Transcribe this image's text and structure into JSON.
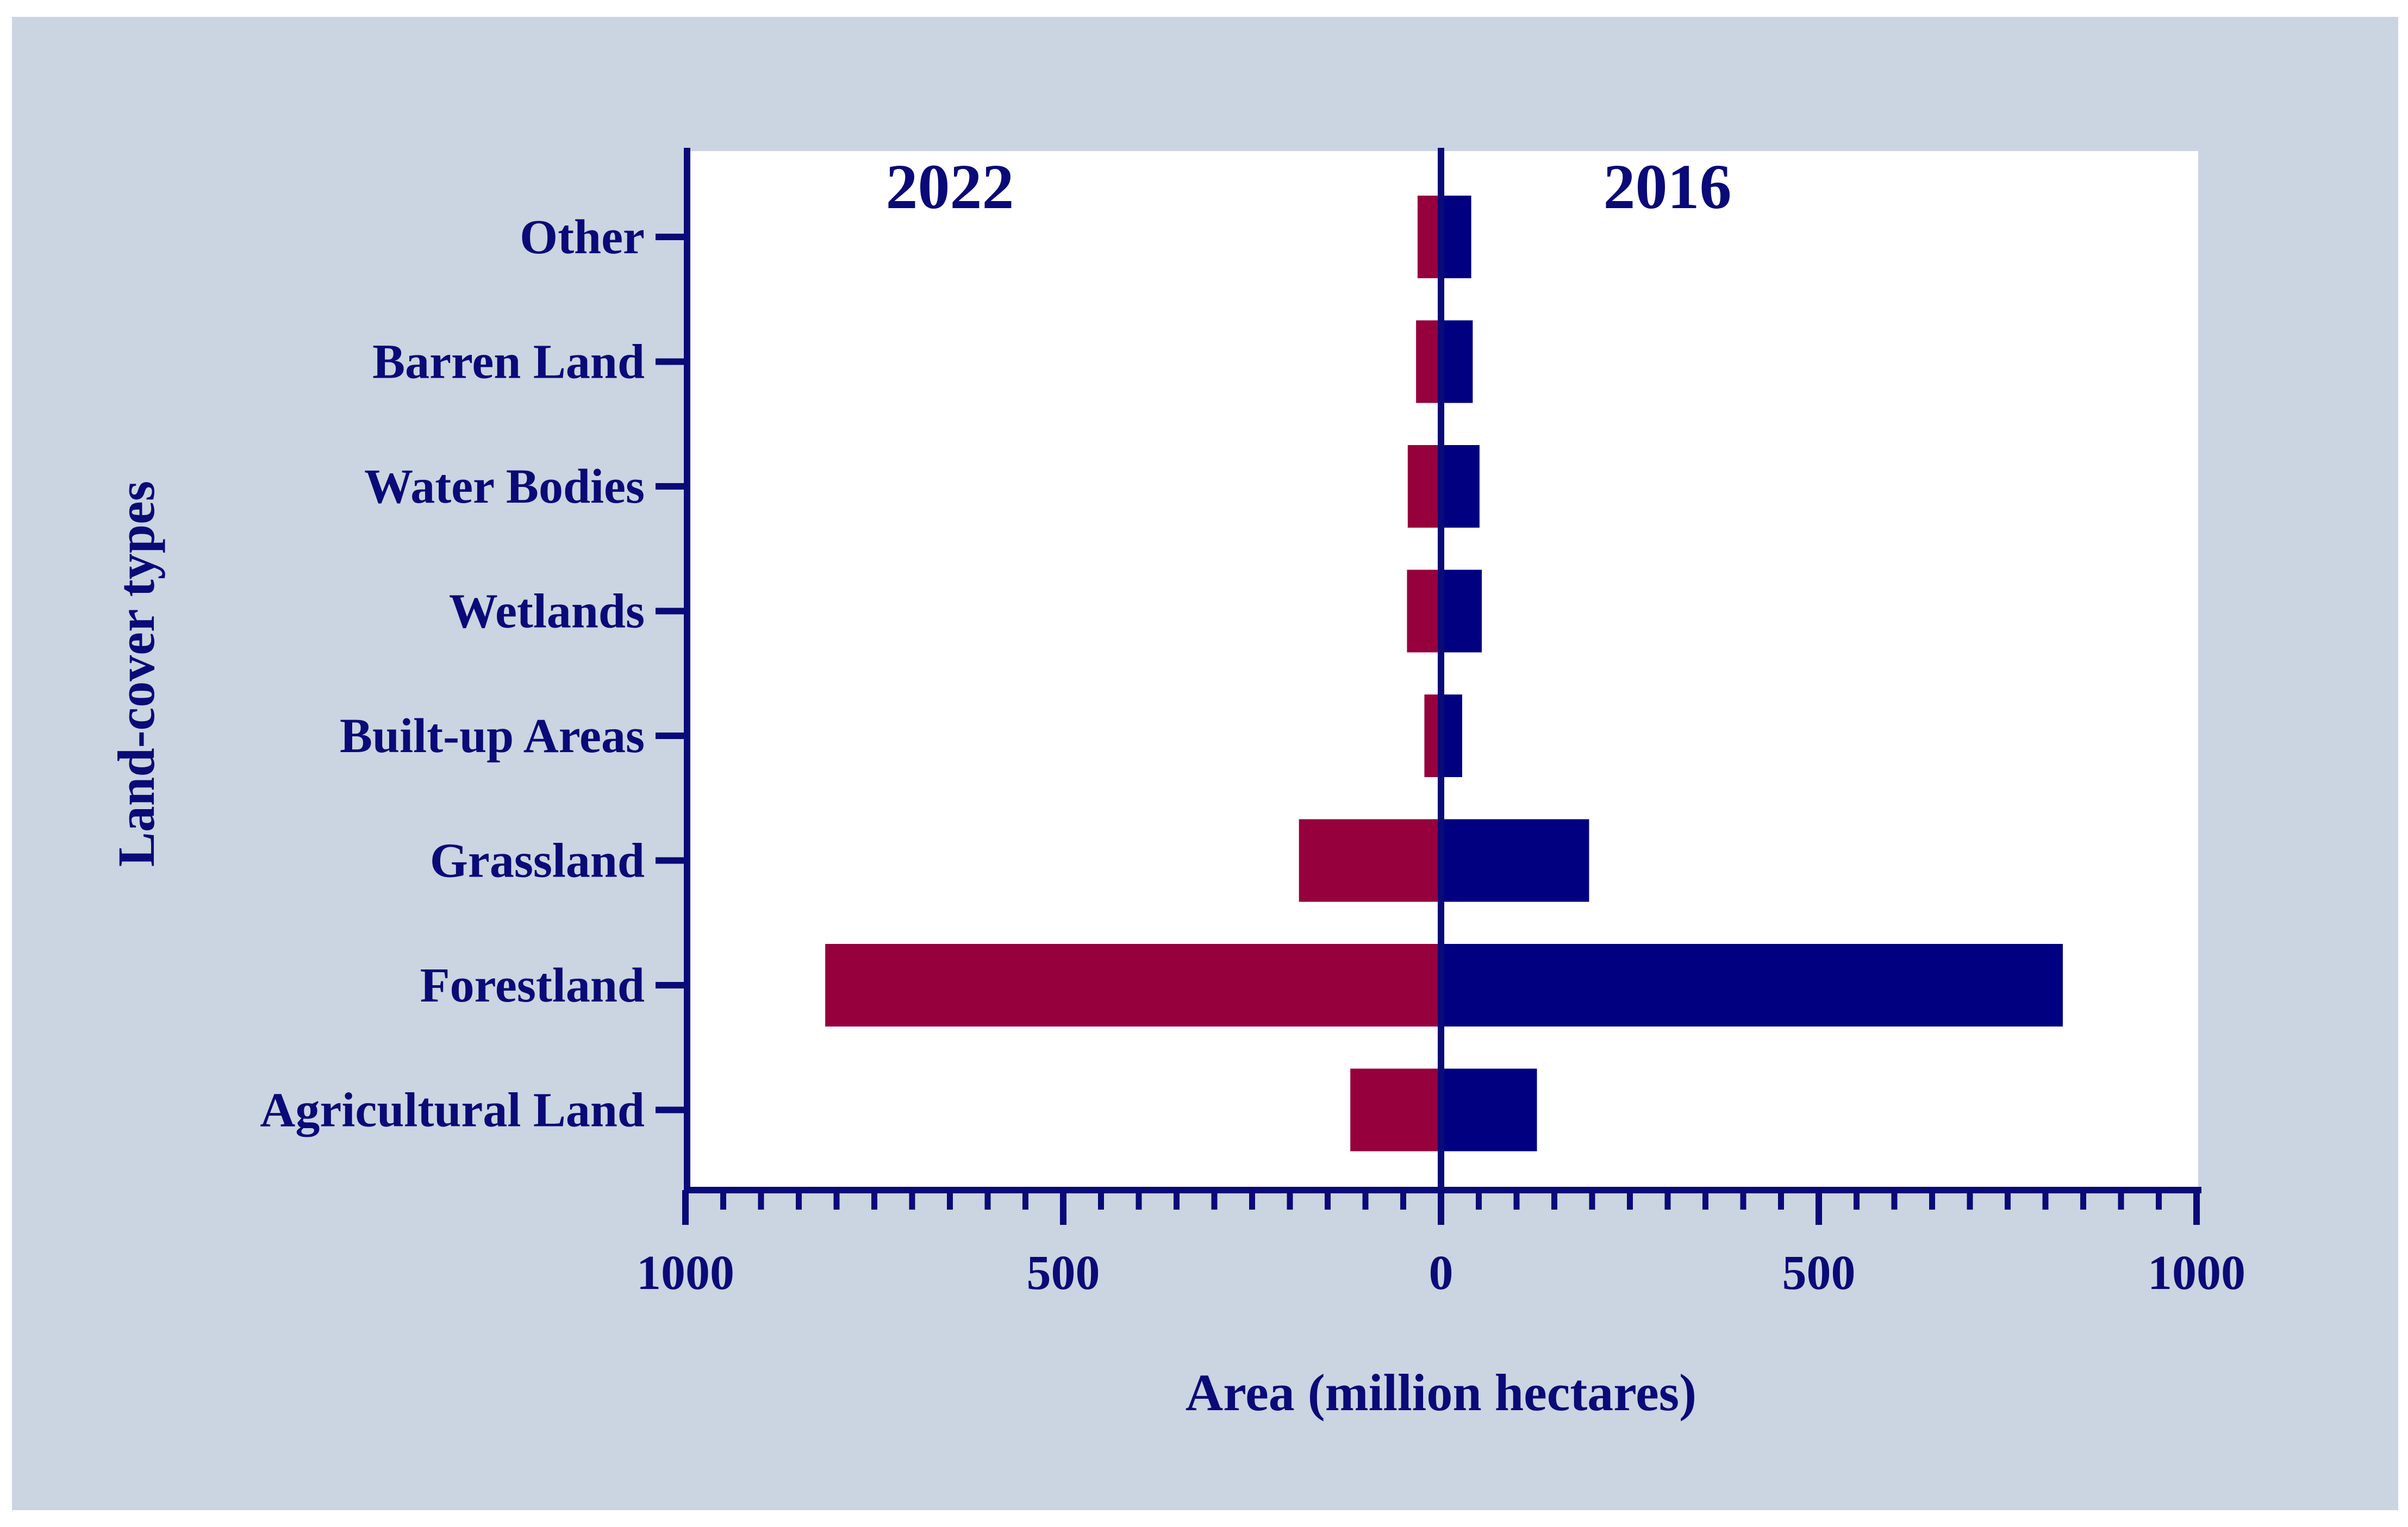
{
  "chart_data": {
    "type": "bar",
    "orientation": "horizontal",
    "layout": "back-to-back",
    "xlabel": "Area (million hectares)",
    "ylabel": "Land-cover types",
    "categories": [
      "Agricultural Land",
      "Forestland",
      "Grassland",
      "Built-up Areas",
      "Wetlands",
      "Water Bodies",
      "Barren Land",
      "Other"
    ],
    "series": [
      {
        "name": "2022",
        "side": "left",
        "color": "#96003c",
        "values": [
          120,
          815,
          188,
          22,
          45,
          44,
          33,
          31
        ]
      },
      {
        "name": "2016",
        "side": "right",
        "color": "#000080",
        "values": [
          127,
          823,
          196,
          28,
          54,
          51,
          42,
          40
        ]
      }
    ],
    "xlim": [
      -1000,
      1000
    ],
    "tick_values": [
      -1000,
      -500,
      0,
      500,
      1000
    ],
    "tick_labels": [
      "1000",
      "500",
      "0",
      "500",
      "1000"
    ],
    "minor_tick_step": 50,
    "axis_color": "#0a0a78",
    "background_color": "#cbd4e1",
    "plot_background": "#ffffff"
  }
}
